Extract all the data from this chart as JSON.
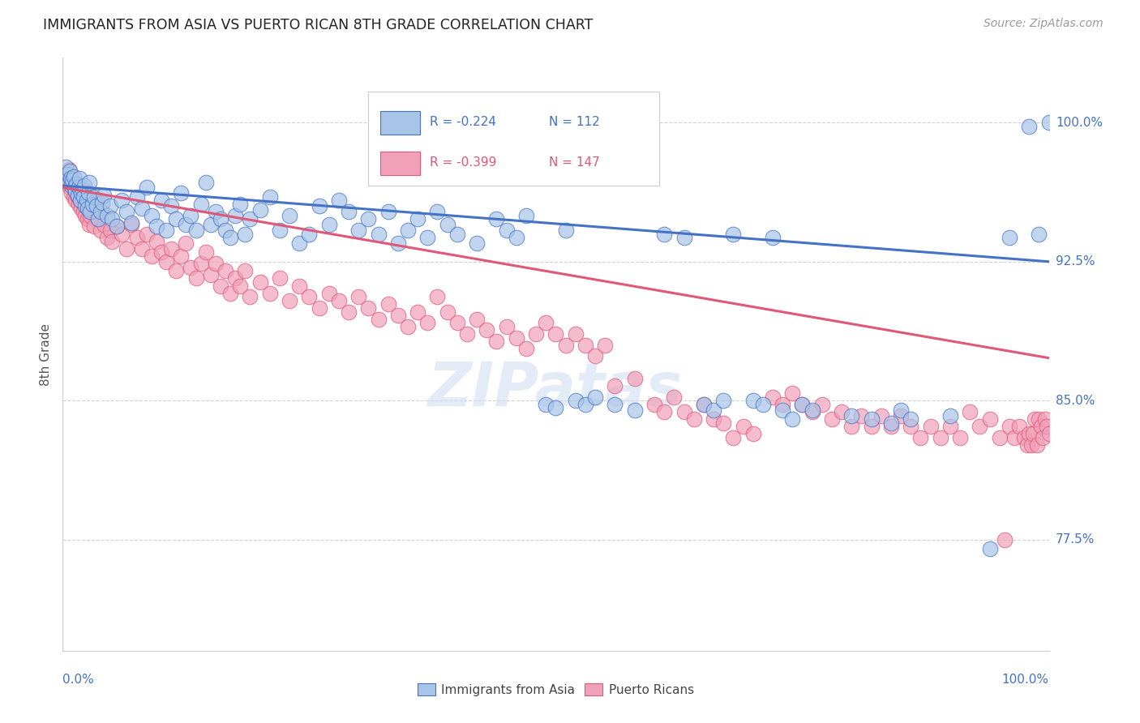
{
  "title": "IMMIGRANTS FROM ASIA VS PUERTO RICAN 8TH GRADE CORRELATION CHART",
  "source": "Source: ZipAtlas.com",
  "ylabel": "8th Grade",
  "ytick_labels": [
    "77.5%",
    "85.0%",
    "92.5%",
    "100.0%"
  ],
  "ytick_values": [
    0.775,
    0.85,
    0.925,
    1.0
  ],
  "xlim": [
    0.0,
    1.0
  ],
  "ylim": [
    0.715,
    1.035
  ],
  "blue_line_color": "#4472c4",
  "pink_line_color": "#e05878",
  "blue_fill": "#a8c4e8",
  "pink_fill": "#f0a0b8",
  "blue_edge": "#4472c4",
  "pink_edge": "#e05878",
  "blue_regression": [
    0.0,
    0.966,
    1.0,
    0.925
  ],
  "pink_regression": [
    0.0,
    0.965,
    1.0,
    0.873
  ],
  "blue_scatter": [
    [
      0.003,
      0.976
    ],
    [
      0.005,
      0.972
    ],
    [
      0.006,
      0.968
    ],
    [
      0.007,
      0.974
    ],
    [
      0.008,
      0.97
    ],
    [
      0.009,
      0.966
    ],
    [
      0.01,
      0.969
    ],
    [
      0.011,
      0.971
    ],
    [
      0.012,
      0.965
    ],
    [
      0.013,
      0.963
    ],
    [
      0.014,
      0.967
    ],
    [
      0.015,
      0.961
    ],
    [
      0.016,
      0.965
    ],
    [
      0.017,
      0.97
    ],
    [
      0.018,
      0.958
    ],
    [
      0.019,
      0.962
    ],
    [
      0.02,
      0.964
    ],
    [
      0.021,
      0.96
    ],
    [
      0.022,
      0.966
    ],
    [
      0.023,
      0.955
    ],
    [
      0.024,
      0.958
    ],
    [
      0.025,
      0.954
    ],
    [
      0.026,
      0.962
    ],
    [
      0.027,
      0.968
    ],
    [
      0.028,
      0.952
    ],
    [
      0.03,
      0.956
    ],
    [
      0.032,
      0.96
    ],
    [
      0.034,
      0.955
    ],
    [
      0.036,
      0.948
    ],
    [
      0.038,
      0.952
    ],
    [
      0.04,
      0.957
    ],
    [
      0.042,
      0.961
    ],
    [
      0.045,
      0.95
    ],
    [
      0.048,
      0.955
    ],
    [
      0.05,
      0.948
    ],
    [
      0.055,
      0.944
    ],
    [
      0.06,
      0.958
    ],
    [
      0.065,
      0.952
    ],
    [
      0.07,
      0.946
    ],
    [
      0.075,
      0.96
    ],
    [
      0.08,
      0.954
    ],
    [
      0.085,
      0.965
    ],
    [
      0.09,
      0.95
    ],
    [
      0.095,
      0.944
    ],
    [
      0.1,
      0.958
    ],
    [
      0.105,
      0.942
    ],
    [
      0.11,
      0.955
    ],
    [
      0.115,
      0.948
    ],
    [
      0.12,
      0.962
    ],
    [
      0.125,
      0.945
    ],
    [
      0.13,
      0.95
    ],
    [
      0.135,
      0.942
    ],
    [
      0.14,
      0.956
    ],
    [
      0.145,
      0.968
    ],
    [
      0.15,
      0.945
    ],
    [
      0.155,
      0.952
    ],
    [
      0.16,
      0.948
    ],
    [
      0.165,
      0.942
    ],
    [
      0.17,
      0.938
    ],
    [
      0.175,
      0.95
    ],
    [
      0.18,
      0.956
    ],
    [
      0.185,
      0.94
    ],
    [
      0.19,
      0.948
    ],
    [
      0.2,
      0.953
    ],
    [
      0.21,
      0.96
    ],
    [
      0.22,
      0.942
    ],
    [
      0.23,
      0.95
    ],
    [
      0.24,
      0.935
    ],
    [
      0.25,
      0.94
    ],
    [
      0.26,
      0.955
    ],
    [
      0.27,
      0.945
    ],
    [
      0.28,
      0.958
    ],
    [
      0.29,
      0.952
    ],
    [
      0.3,
      0.942
    ],
    [
      0.31,
      0.948
    ],
    [
      0.32,
      0.94
    ],
    [
      0.33,
      0.952
    ],
    [
      0.34,
      0.935
    ],
    [
      0.35,
      0.942
    ],
    [
      0.36,
      0.948
    ],
    [
      0.37,
      0.938
    ],
    [
      0.38,
      0.952
    ],
    [
      0.39,
      0.945
    ],
    [
      0.4,
      0.94
    ],
    [
      0.42,
      0.935
    ],
    [
      0.44,
      0.948
    ],
    [
      0.45,
      0.942
    ],
    [
      0.46,
      0.938
    ],
    [
      0.47,
      0.95
    ],
    [
      0.49,
      0.848
    ],
    [
      0.5,
      0.846
    ],
    [
      0.51,
      0.942
    ],
    [
      0.52,
      0.85
    ],
    [
      0.53,
      0.848
    ],
    [
      0.54,
      0.852
    ],
    [
      0.56,
      0.848
    ],
    [
      0.58,
      0.845
    ],
    [
      0.61,
      0.94
    ],
    [
      0.63,
      0.938
    ],
    [
      0.65,
      0.848
    ],
    [
      0.66,
      0.845
    ],
    [
      0.67,
      0.85
    ],
    [
      0.68,
      0.94
    ],
    [
      0.7,
      0.85
    ],
    [
      0.71,
      0.848
    ],
    [
      0.72,
      0.938
    ],
    [
      0.73,
      0.845
    ],
    [
      0.74,
      0.84
    ],
    [
      0.75,
      0.848
    ],
    [
      0.76,
      0.845
    ],
    [
      0.8,
      0.842
    ],
    [
      0.82,
      0.84
    ],
    [
      0.84,
      0.838
    ],
    [
      0.85,
      0.845
    ],
    [
      0.86,
      0.84
    ],
    [
      0.9,
      0.842
    ],
    [
      0.94,
      0.77
    ],
    [
      0.96,
      0.938
    ],
    [
      0.98,
      0.998
    ],
    [
      0.99,
      0.94
    ],
    [
      1.0,
      1.0
    ]
  ],
  "pink_scatter": [
    [
      0.003,
      0.972
    ],
    [
      0.005,
      0.968
    ],
    [
      0.006,
      0.975
    ],
    [
      0.007,
      0.965
    ],
    [
      0.008,
      0.97
    ],
    [
      0.009,
      0.962
    ],
    [
      0.01,
      0.968
    ],
    [
      0.011,
      0.96
    ],
    [
      0.012,
      0.964
    ],
    [
      0.013,
      0.958
    ],
    [
      0.014,
      0.966
    ],
    [
      0.015,
      0.96
    ],
    [
      0.016,
      0.956
    ],
    [
      0.017,
      0.962
    ],
    [
      0.018,
      0.958
    ],
    [
      0.019,
      0.954
    ],
    [
      0.02,
      0.96
    ],
    [
      0.021,
      0.952
    ],
    [
      0.022,
      0.958
    ],
    [
      0.023,
      0.95
    ],
    [
      0.024,
      0.956
    ],
    [
      0.025,
      0.948
    ],
    [
      0.026,
      0.954
    ],
    [
      0.027,
      0.945
    ],
    [
      0.028,
      0.95
    ],
    [
      0.03,
      0.955
    ],
    [
      0.032,
      0.944
    ],
    [
      0.034,
      0.958
    ],
    [
      0.036,
      0.948
    ],
    [
      0.038,
      0.942
    ],
    [
      0.04,
      0.952
    ],
    [
      0.042,
      0.945
    ],
    [
      0.045,
      0.938
    ],
    [
      0.048,
      0.942
    ],
    [
      0.05,
      0.936
    ],
    [
      0.055,
      0.944
    ],
    [
      0.06,
      0.94
    ],
    [
      0.065,
      0.932
    ],
    [
      0.07,
      0.945
    ],
    [
      0.075,
      0.938
    ],
    [
      0.08,
      0.932
    ],
    [
      0.085,
      0.94
    ],
    [
      0.09,
      0.928
    ],
    [
      0.095,
      0.936
    ],
    [
      0.1,
      0.93
    ],
    [
      0.105,
      0.925
    ],
    [
      0.11,
      0.932
    ],
    [
      0.115,
      0.92
    ],
    [
      0.12,
      0.928
    ],
    [
      0.125,
      0.935
    ],
    [
      0.13,
      0.922
    ],
    [
      0.135,
      0.916
    ],
    [
      0.14,
      0.924
    ],
    [
      0.145,
      0.93
    ],
    [
      0.15,
      0.918
    ],
    [
      0.155,
      0.924
    ],
    [
      0.16,
      0.912
    ],
    [
      0.165,
      0.92
    ],
    [
      0.17,
      0.908
    ],
    [
      0.175,
      0.916
    ],
    [
      0.18,
      0.912
    ],
    [
      0.185,
      0.92
    ],
    [
      0.19,
      0.906
    ],
    [
      0.2,
      0.914
    ],
    [
      0.21,
      0.908
    ],
    [
      0.22,
      0.916
    ],
    [
      0.23,
      0.904
    ],
    [
      0.24,
      0.912
    ],
    [
      0.25,
      0.906
    ],
    [
      0.26,
      0.9
    ],
    [
      0.27,
      0.908
    ],
    [
      0.28,
      0.904
    ],
    [
      0.29,
      0.898
    ],
    [
      0.3,
      0.906
    ],
    [
      0.31,
      0.9
    ],
    [
      0.32,
      0.894
    ],
    [
      0.33,
      0.902
    ],
    [
      0.34,
      0.896
    ],
    [
      0.35,
      0.89
    ],
    [
      0.36,
      0.898
    ],
    [
      0.37,
      0.892
    ],
    [
      0.38,
      0.906
    ],
    [
      0.39,
      0.898
    ],
    [
      0.4,
      0.892
    ],
    [
      0.41,
      0.886
    ],
    [
      0.42,
      0.894
    ],
    [
      0.43,
      0.888
    ],
    [
      0.44,
      0.882
    ],
    [
      0.45,
      0.89
    ],
    [
      0.46,
      0.884
    ],
    [
      0.47,
      0.878
    ],
    [
      0.48,
      0.886
    ],
    [
      0.49,
      0.892
    ],
    [
      0.5,
      0.886
    ],
    [
      0.51,
      0.88
    ],
    [
      0.52,
      0.886
    ],
    [
      0.53,
      0.88
    ],
    [
      0.54,
      0.874
    ],
    [
      0.55,
      0.88
    ],
    [
      0.56,
      0.858
    ],
    [
      0.58,
      0.862
    ],
    [
      0.6,
      0.848
    ],
    [
      0.61,
      0.844
    ],
    [
      0.62,
      0.852
    ],
    [
      0.63,
      0.844
    ],
    [
      0.64,
      0.84
    ],
    [
      0.65,
      0.848
    ],
    [
      0.66,
      0.84
    ],
    [
      0.67,
      0.838
    ],
    [
      0.68,
      0.83
    ],
    [
      0.69,
      0.836
    ],
    [
      0.7,
      0.832
    ],
    [
      0.72,
      0.852
    ],
    [
      0.73,
      0.848
    ],
    [
      0.74,
      0.854
    ],
    [
      0.75,
      0.848
    ],
    [
      0.76,
      0.844
    ],
    [
      0.77,
      0.848
    ],
    [
      0.78,
      0.84
    ],
    [
      0.79,
      0.844
    ],
    [
      0.8,
      0.836
    ],
    [
      0.81,
      0.842
    ],
    [
      0.82,
      0.836
    ],
    [
      0.83,
      0.842
    ],
    [
      0.84,
      0.836
    ],
    [
      0.85,
      0.842
    ],
    [
      0.86,
      0.836
    ],
    [
      0.87,
      0.83
    ],
    [
      0.88,
      0.836
    ],
    [
      0.89,
      0.83
    ],
    [
      0.9,
      0.836
    ],
    [
      0.91,
      0.83
    ],
    [
      0.92,
      0.844
    ],
    [
      0.93,
      0.836
    ],
    [
      0.94,
      0.84
    ],
    [
      0.95,
      0.83
    ],
    [
      0.955,
      0.775
    ],
    [
      0.96,
      0.836
    ],
    [
      0.965,
      0.83
    ],
    [
      0.97,
      0.836
    ],
    [
      0.975,
      0.83
    ],
    [
      0.978,
      0.826
    ],
    [
      0.98,
      0.832
    ],
    [
      0.982,
      0.826
    ],
    [
      0.984,
      0.832
    ],
    [
      0.986,
      0.84
    ],
    [
      0.988,
      0.826
    ],
    [
      0.99,
      0.84
    ],
    [
      0.992,
      0.836
    ],
    [
      0.994,
      0.83
    ],
    [
      0.996,
      0.84
    ],
    [
      0.998,
      0.836
    ],
    [
      1.0,
      0.832
    ]
  ],
  "watermark_text": "ZIPatas",
  "background_color": "#ffffff",
  "grid_color": "#cccccc"
}
